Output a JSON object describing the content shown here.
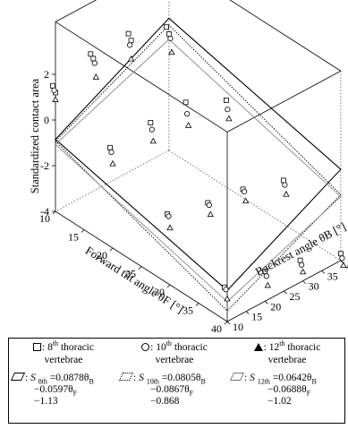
{
  "chart_data": {
    "type": "scatter3d",
    "ylabel": "Standardized contact area",
    "xlabel_forward": "Forward tilt angle θF [°]",
    "xlabel_backrest": "Backrest angle θB [°]",
    "forward_ticks": [
      "10",
      "15",
      "20",
      "25",
      "30",
      "35",
      "40"
    ],
    "backrest_ticks": [
      "10",
      "15",
      "20",
      "25",
      "30",
      "35",
      "40"
    ],
    "vertical_ticks": [
      "-4",
      "-2",
      "0",
      "2"
    ],
    "zlim": [
      -4,
      2
    ],
    "forward_range": [
      10,
      40
    ],
    "backrest_range": [
      10,
      40
    ],
    "series": [
      {
        "name": "8th thoracic vertebrae",
        "marker": "square",
        "points": [
          {
            "f": 10,
            "b": 10,
            "v": 1.5
          },
          {
            "f": 10,
            "b": 10,
            "v": 1.2
          },
          {
            "f": 10,
            "b": 20,
            "v": 2.0
          },
          {
            "f": 10,
            "b": 20,
            "v": 1.8
          },
          {
            "f": 10,
            "b": 30,
            "v": 2.0
          },
          {
            "f": 10,
            "b": 30,
            "v": 1.7
          },
          {
            "f": 10,
            "b": 40,
            "v": 1.4
          },
          {
            "f": 10,
            "b": 40,
            "v": 1.1
          },
          {
            "f": 20,
            "b": 10,
            "v": 0.4
          },
          {
            "f": 20,
            "b": 20,
            "v": 0.6
          },
          {
            "f": 20,
            "b": 30,
            "v": 0.6
          },
          {
            "f": 20,
            "b": 40,
            "v": -0.2
          },
          {
            "f": 30,
            "b": 10,
            "v": -0.9
          },
          {
            "f": 30,
            "b": 20,
            "v": -1.3
          },
          {
            "f": 30,
            "b": 30,
            "v": -1.6
          },
          {
            "f": 30,
            "b": 40,
            "v": -2.1
          },
          {
            "f": 40,
            "b": 10,
            "v": -2.5
          },
          {
            "f": 40,
            "b": 20,
            "v": -2.7
          },
          {
            "f": 40,
            "b": 30,
            "v": -3.1
          },
          {
            "f": 40,
            "b": 40,
            "v": -3.7
          }
        ]
      },
      {
        "name": "10th thoracic vertebrae",
        "marker": "circle",
        "points": [
          {
            "f": 10,
            "b": 10,
            "v": 1.3
          },
          {
            "f": 10,
            "b": 20,
            "v": 1.6
          },
          {
            "f": 10,
            "b": 30,
            "v": 1.5
          },
          {
            "f": 10,
            "b": 40,
            "v": 0.9
          },
          {
            "f": 20,
            "b": 10,
            "v": 0.2
          },
          {
            "f": 20,
            "b": 20,
            "v": 0.3
          },
          {
            "f": 20,
            "b": 30,
            "v": 0.1
          },
          {
            "f": 20,
            "b": 40,
            "v": -0.6
          },
          {
            "f": 30,
            "b": 10,
            "v": -1.0
          },
          {
            "f": 30,
            "b": 20,
            "v": -1.4
          },
          {
            "f": 30,
            "b": 30,
            "v": -1.7
          },
          {
            "f": 30,
            "b": 40,
            "v": -2.3
          },
          {
            "f": 40,
            "b": 10,
            "v": -2.6
          },
          {
            "f": 40,
            "b": 20,
            "v": -2.9
          },
          {
            "f": 40,
            "b": 30,
            "v": -3.3
          },
          {
            "f": 40,
            "b": 40,
            "v": -3.9
          }
        ]
      },
      {
        "name": "12th thoracic vertebrae",
        "marker": "triangle",
        "points": [
          {
            "f": 10,
            "b": 10,
            "v": 0.9
          },
          {
            "f": 10,
            "b": 20,
            "v": 1.0
          },
          {
            "f": 10,
            "b": 30,
            "v": 0.9
          },
          {
            "f": 10,
            "b": 40,
            "v": 0.3
          },
          {
            "f": 20,
            "b": 10,
            "v": -0.3
          },
          {
            "f": 20,
            "b": 20,
            "v": -0.2
          },
          {
            "f": 20,
            "b": 30,
            "v": -0.4
          },
          {
            "f": 20,
            "b": 40,
            "v": -1.0
          },
          {
            "f": 30,
            "b": 10,
            "v": -1.5
          },
          {
            "f": 30,
            "b": 20,
            "v": -1.8
          },
          {
            "f": 30,
            "b": 30,
            "v": -2.1
          },
          {
            "f": 30,
            "b": 40,
            "v": -2.7
          },
          {
            "f": 40,
            "b": 10,
            "v": -3.0
          },
          {
            "f": 40,
            "b": 20,
            "v": -3.3
          },
          {
            "f": 40,
            "b": 30,
            "v": -3.6
          },
          {
            "f": 40,
            "b": 40,
            "v": -4.2
          }
        ]
      }
    ],
    "fit_planes": [
      {
        "name": "S 8th",
        "coef_b": 0.0878,
        "coef_f": -0.0597,
        "intercept": -1.13,
        "style": "solid",
        "color": "#000000"
      },
      {
        "name": "S 10th",
        "coef_b": 0.0805,
        "coef_f": -0.0867,
        "intercept": -0.868,
        "style": "dotted",
        "color": "#000000"
      },
      {
        "name": "S 12th",
        "coef_b": 0.0642,
        "coef_f": -0.0688,
        "intercept": -1.02,
        "style": "solid",
        "color": "#888888"
      }
    ]
  },
  "legend": {
    "sq_sup": "th",
    "sq_label_a": "8",
    "sq_label_b": " thoracic",
    "sq_label_c": "vertebrae",
    "ci_label_a": "10",
    "ci_label_b": " thoracic",
    "ci_label_c": "vertebrae",
    "tr_label_a": "12",
    "tr_label_b": " thoracic",
    "tr_label_c": "vertebrae",
    "sep": ": ",
    "eq8_l1a": "S ",
    "eq8_sub": "8th",
    "eq8_l1b": " =0.0878θ",
    "eq8_l1sub": "B",
    "eq8_l2": "−0.0597θ",
    "eq8_l2sub": "F",
    "eq8_l3": "−1.13",
    "eq10_l1a": "S ",
    "eq10_sub": "10th",
    "eq10_l1b": " =0.0805θ",
    "eq10_l1sub": "B",
    "eq10_l2": "−0.0867θ",
    "eq10_l2sub": "F",
    "eq10_l3": "−0.868",
    "eq12_l1a": "S ",
    "eq12_sub": "12th",
    "eq12_l1b": " =0.0642θ",
    "eq12_l1sub": "B",
    "eq12_l2": "−0.0688θ",
    "eq12_l2sub": "F",
    "eq12_l3": "−1.02"
  }
}
